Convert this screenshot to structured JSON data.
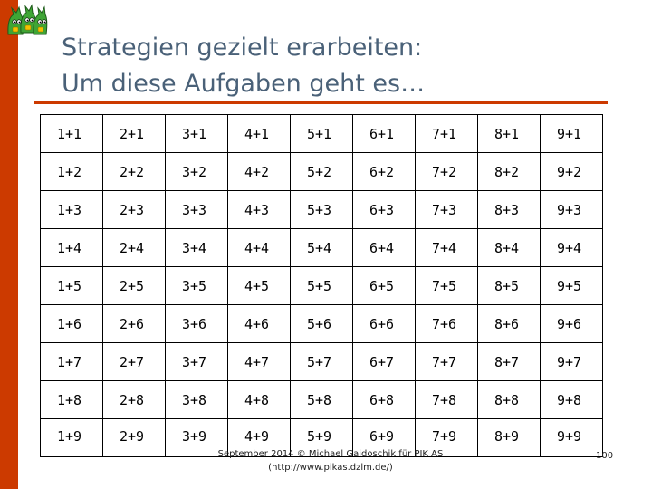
{
  "slide": {
    "title_line1": "Strategien gezielt erarbeiten:",
    "title_line2": "Um diese Aufgaben geht es…",
    "footer_line1": "September 2014 © Michael Gaidoschik für PIK AS",
    "footer_line2": "(http://www.pikas.dzlm.de/)",
    "page_number": "100"
  },
  "colors": {
    "accent": "#cc3a00",
    "title_text": "#4a6178",
    "logo_green": "#3fa535"
  },
  "logo": {
    "icon": "three-green-characters-icon"
  },
  "table": {
    "rows": [
      [
        "1+1",
        "2+1",
        "3+1",
        "4+1",
        "5+1",
        "6+1",
        "7+1",
        "8+1",
        "9+1"
      ],
      [
        "1+2",
        "2+2",
        "3+2",
        "4+2",
        "5+2",
        "6+2",
        "7+2",
        "8+2",
        "9+2"
      ],
      [
        "1+3",
        "2+3",
        "3+3",
        "4+3",
        "5+3",
        "6+3",
        "7+3",
        "8+3",
        "9+3"
      ],
      [
        "1+4",
        "2+4",
        "3+4",
        "4+4",
        "5+4",
        "6+4",
        "7+4",
        "8+4",
        "9+4"
      ],
      [
        "1+5",
        "2+5",
        "3+5",
        "4+5",
        "5+5",
        "6+5",
        "7+5",
        "8+5",
        "9+5"
      ],
      [
        "1+6",
        "2+6",
        "3+6",
        "4+6",
        "5+6",
        "6+6",
        "7+6",
        "8+6",
        "9+6"
      ],
      [
        "1+7",
        "2+7",
        "3+7",
        "4+7",
        "5+7",
        "6+7",
        "7+7",
        "8+7",
        "9+7"
      ],
      [
        "1+8",
        "2+8",
        "3+8",
        "4+8",
        "5+8",
        "6+8",
        "7+8",
        "8+8",
        "9+8"
      ],
      [
        "1+9",
        "2+9",
        "3+9",
        "4+9",
        "5+9",
        "6+9",
        "7+9",
        "8+9",
        "9+9"
      ]
    ]
  }
}
